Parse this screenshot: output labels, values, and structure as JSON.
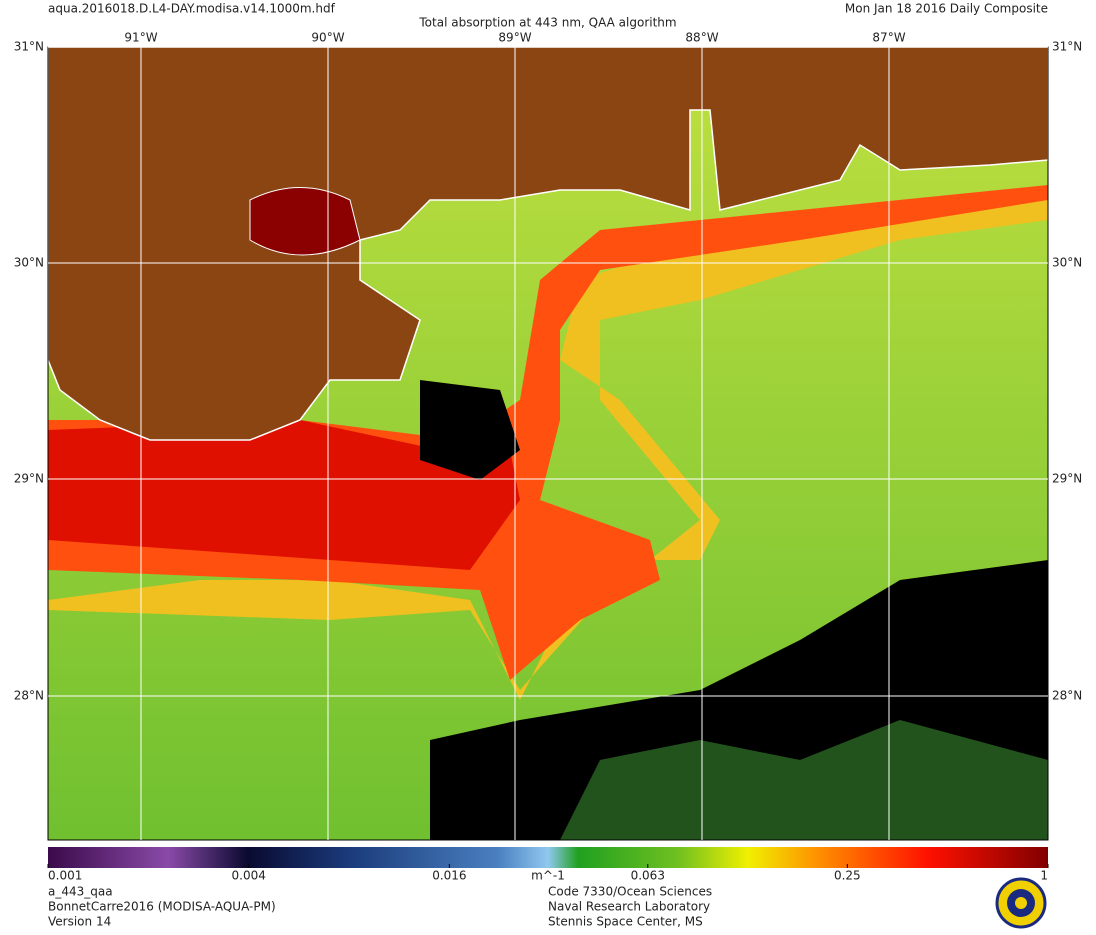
{
  "header": {
    "filename": "aqua.2016018.D.L4-DAY.modisa.v14.1000m.hdf",
    "title": "Total absorption at 443 nm, QAA algorithm",
    "date": "Mon Jan 18 2016 Daily Composite"
  },
  "longitude_labels": [
    "91°W",
    "90°W",
    "89°W",
    "88°W",
    "87°W"
  ],
  "latitude_labels": [
    "31°N",
    "30°N",
    "29°N",
    "28°N"
  ],
  "colorbar": {
    "range": [
      0.001,
      1
    ],
    "log": true,
    "ticks": [
      0.001,
      0.004,
      0.016,
      0.063,
      0.25,
      1
    ],
    "unit": "m^-1"
  },
  "footer": {
    "left": [
      "a_443_qaa",
      "BonnetCarre2016 (MODISA-AQUA-PM)",
      "Version 14"
    ],
    "right": [
      "Code 7330/Ocean Sciences",
      "Naval Research Laboratory",
      "Stennis Space Center, MS"
    ]
  }
}
